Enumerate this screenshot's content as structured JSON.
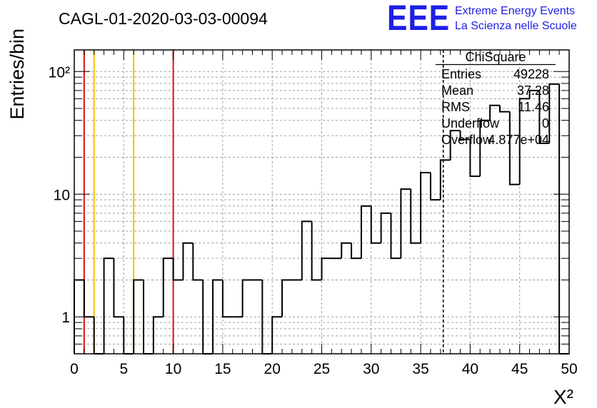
{
  "header": {
    "run_title": "CAGL-01-2020-03-03-00094",
    "logo_text": "EEE",
    "logo_line1": "Extreme Energy Events",
    "logo_line2": "La Scienza nelle Scuole"
  },
  "colors": {
    "logo_blue": "#1f1fe6",
    "red_line": "#dd1111",
    "yellow_line": "#f2c200",
    "grid": "#a0a0a0"
  },
  "chart_data": {
    "type": "bar",
    "title": "CAGL-01-2020-03-03-00094",
    "xlabel": "X²",
    "ylabel": "Entries/bin",
    "xlim": [
      0,
      50
    ],
    "ylim": [
      0.5,
      150
    ],
    "log_y": true,
    "grid": true,
    "bin_width": 1,
    "bin_edges_start": 0,
    "x_ticks": [
      0,
      5,
      10,
      15,
      20,
      25,
      30,
      35,
      40,
      45,
      50
    ],
    "x_tick_labels": [
      "0",
      "5",
      "10",
      "15",
      "20",
      "25",
      "30",
      "35",
      "40",
      "45",
      "50"
    ],
    "y_tick_labels": [
      "1",
      "10",
      "10²"
    ],
    "y_tick_values": [
      1,
      10,
      100
    ],
    "values": [
      2,
      1,
      0,
      3,
      1,
      0,
      2,
      0,
      1,
      3,
      2,
      4,
      2,
      0,
      2,
      1,
      1,
      2,
      2,
      0,
      1,
      2,
      2,
      6,
      2,
      3,
      3,
      4,
      3,
      8,
      4,
      7,
      3,
      11,
      4,
      15,
      9,
      19,
      33,
      28,
      14,
      40,
      53,
      47,
      12,
      60,
      70,
      26,
      79,
      0
    ],
    "vertical_lines": [
      {
        "x": 1,
        "color": "red"
      },
      {
        "x": 2,
        "color": "yellow"
      },
      {
        "x": 6,
        "color": "yellow"
      },
      {
        "x": 10,
        "color": "red"
      },
      {
        "x": 37.28,
        "color": "black",
        "style": "dashed"
      }
    ],
    "stats_box": {
      "title": "ChiSquare",
      "rows": [
        {
          "label": "Entries",
          "value": "49228"
        },
        {
          "label": "Mean",
          "value": "37.28"
        },
        {
          "label": "RMS",
          "value": "11.46"
        },
        {
          "label": "Underflow",
          "value": "0"
        },
        {
          "label": "Overflow",
          "value": "4.877e+04"
        }
      ]
    }
  }
}
